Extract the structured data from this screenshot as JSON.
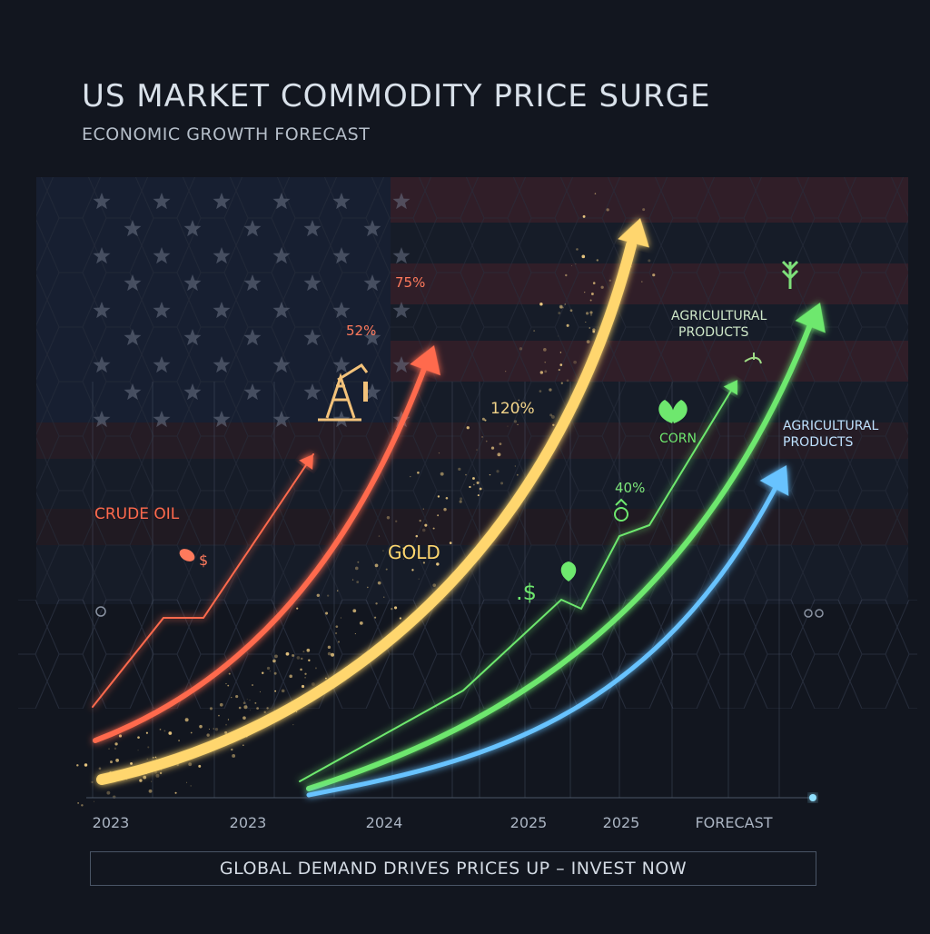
{
  "header": {
    "title": "US MARKET COMMODITY PRICE SURGE",
    "subtitle": "ECONOMIC GROWTH FORECAST"
  },
  "banner": "GLOBAL DEMAND DRIVES PRICES UP – INVEST NOW",
  "colors": {
    "background": "#12161f",
    "crude_oil": "#ff6a4d",
    "gold": "#ffd66e",
    "corn": "#6ee86e",
    "agricultural": "#67c3ff"
  },
  "chart_data": {
    "type": "line",
    "title": "US MARKET COMMODITY PRICE SURGE",
    "subtitle": "ECONOMIC GROWTH FORECAST",
    "x_tick_labels": [
      "2023",
      "2023",
      "2024",
      "2025",
      "2025",
      "FORECAST"
    ],
    "series": [
      {
        "name": "CRUDE OIL",
        "color": "#ff6a4d",
        "label_value": "52%"
      },
      {
        "name": "",
        "color": "#ff6a4d",
        "label_value": "75%"
      },
      {
        "name": "GOLD",
        "color": "#ffd66e",
        "label_value": "120%"
      },
      {
        "name": "CORN",
        "color": "#6ee86e",
        "label_value": "40%"
      },
      {
        "name": "AGRICULTURAL PRODUCTS",
        "color": "#6ee86e"
      },
      {
        "name": "AGRICULTURAL PRODUCTS",
        "color": "#67c3ff"
      }
    ],
    "grid": true
  }
}
